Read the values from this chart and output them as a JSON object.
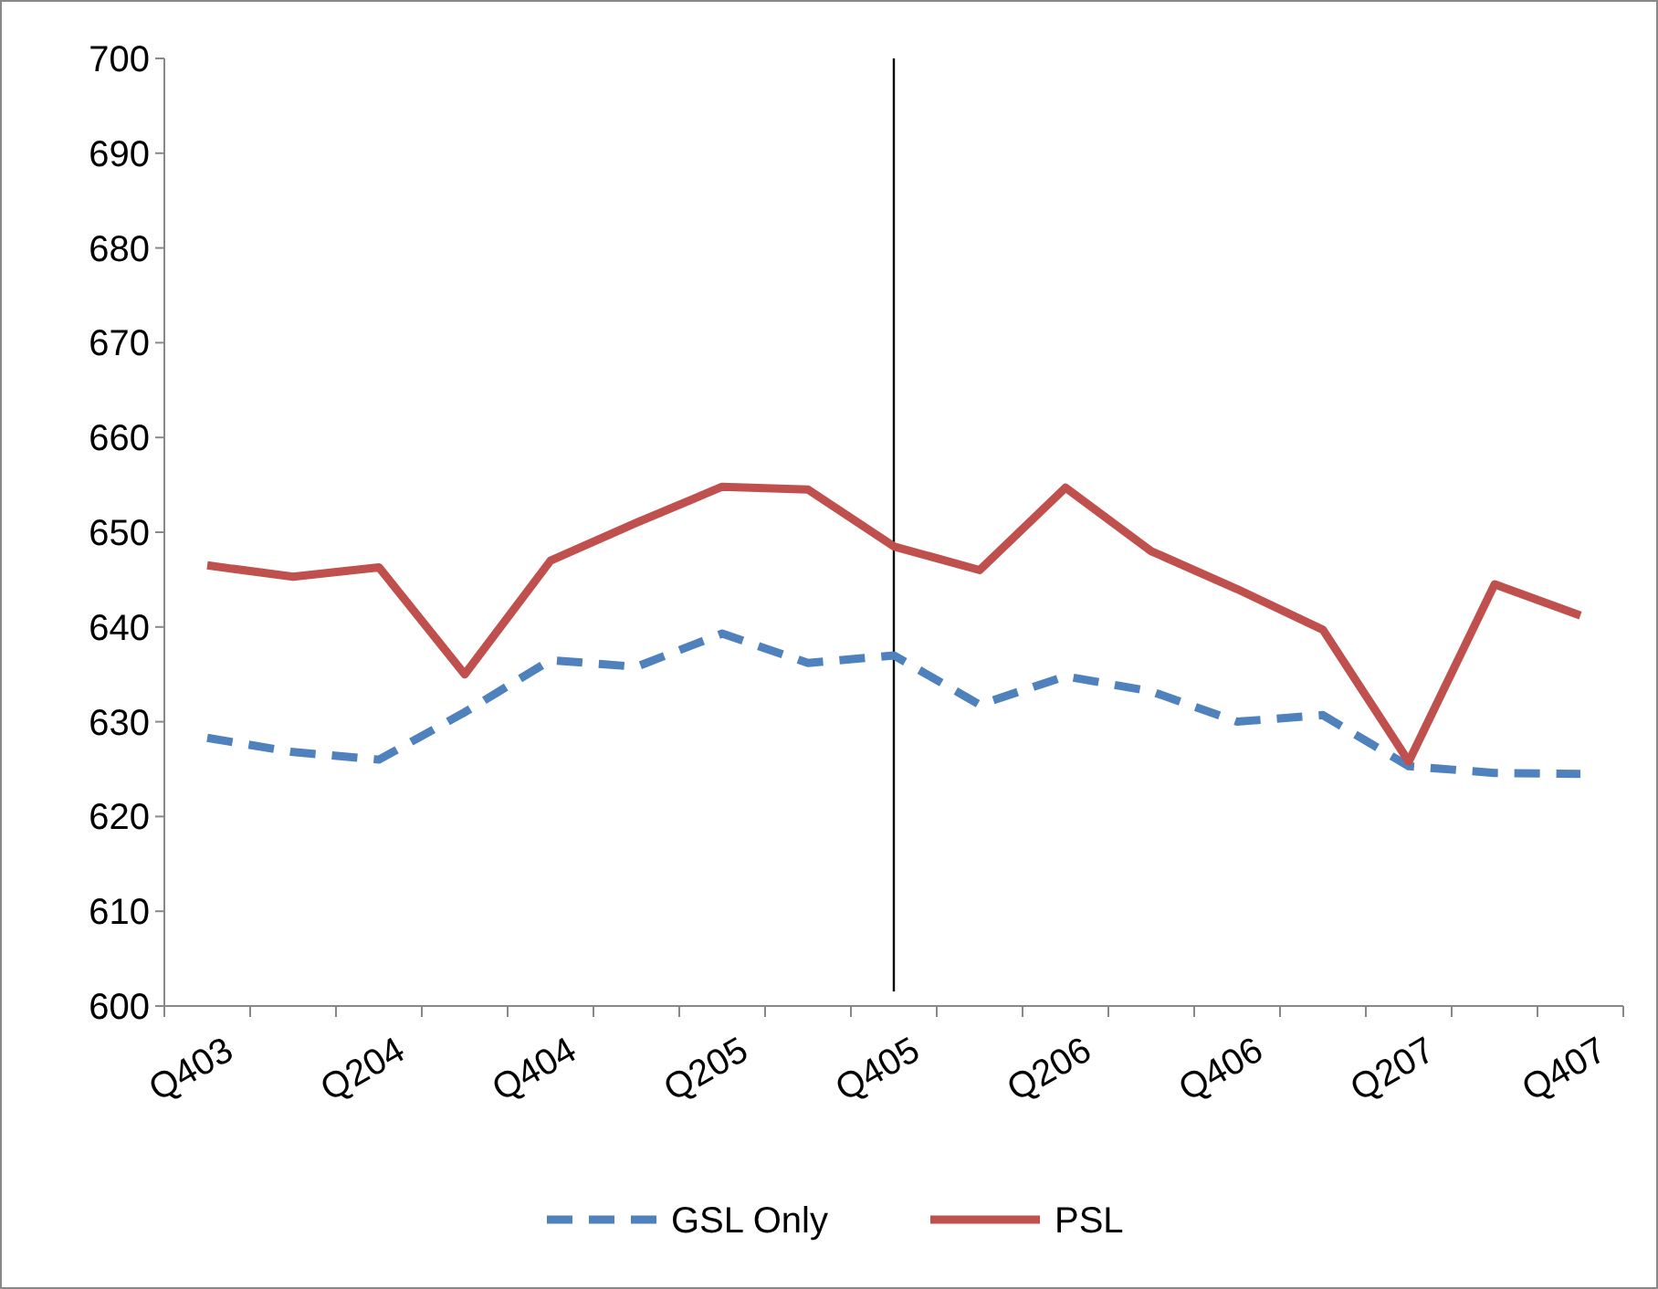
{
  "chart_data": {
    "type": "line",
    "categories": [
      "Q403",
      null,
      "Q204",
      null,
      "Q404",
      null,
      "Q205",
      null,
      "Q405",
      null,
      "Q206",
      null,
      "Q406",
      null,
      "Q207",
      null,
      "Q407"
    ],
    "series": [
      {
        "name": "GSL Only",
        "color": "#4f81bd",
        "line_style": "dashed",
        "values": [
          628.3,
          626.8,
          626,
          631,
          636.5,
          635.8,
          639.3,
          636.2,
          637,
          631.8,
          634.8,
          633.2,
          630,
          630.7,
          625.3,
          624.6,
          624.5
        ]
      },
      {
        "name": "PSL",
        "color": "#c0504d",
        "line_style": "solid",
        "values": [
          646.5,
          645.3,
          646.3,
          635,
          647,
          651,
          654.8,
          654.5,
          648.5,
          646,
          654.7,
          648,
          644,
          639.7,
          625.8,
          644.5,
          641.2
        ]
      }
    ],
    "ylim": [
      600,
      700
    ],
    "yticks": [
      600,
      610,
      620,
      630,
      640,
      650,
      660,
      670,
      680,
      690,
      700
    ],
    "ref_lines": [
      {
        "axis": "x",
        "value": "Q405",
        "color": "#000000"
      }
    ],
    "grid": false,
    "legend": "bottom"
  }
}
